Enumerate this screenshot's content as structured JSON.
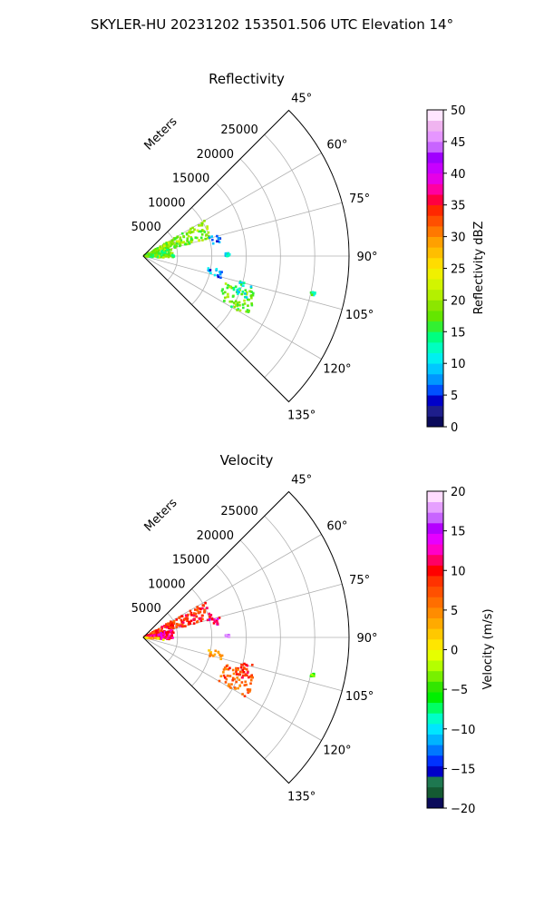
{
  "figure": {
    "suptitle": "SKYLER-HU  20231202  153501.506 UTC Elevation 14°"
  },
  "chart_data": [
    {
      "type": "polar-sector",
      "title": "Reflectivity",
      "radial_label": "Meters",
      "radial_ticks": [
        "5000",
        "10000",
        "15000",
        "20000",
        "25000"
      ],
      "radial_range": [
        0,
        30000
      ],
      "azimuth_range_deg": [
        45,
        135
      ],
      "azimuth_ticks": [
        "45°",
        "60°",
        "75°",
        "90°",
        "105°",
        "120°",
        "135°"
      ],
      "grid": true,
      "colorbar": {
        "label": "Reflectivity dBZ",
        "range": [
          0,
          50
        ],
        "ticks": [
          "0",
          "5",
          "10",
          "15",
          "20",
          "25",
          "30",
          "35",
          "40",
          "45",
          "50"
        ],
        "colors": [
          "#0a0a5a",
          "#1e1e8c",
          "#0000c8",
          "#0050ff",
          "#0096ff",
          "#00c8ff",
          "#00f0f0",
          "#00ffc0",
          "#00ff80",
          "#32f032",
          "#64e600",
          "#8ce600",
          "#b4f000",
          "#d2f500",
          "#f0f000",
          "#ffdc00",
          "#ffbe00",
          "#ffa000",
          "#ff7800",
          "#ff5000",
          "#ff2800",
          "#ff0040",
          "#ff00a0",
          "#e600e6",
          "#c800ff",
          "#a000ff",
          "#c864ff",
          "#e696ff",
          "#f0b4f0",
          "#ffe6ff"
        ]
      },
      "echo_clusters": [
        {
          "az": [
            60,
            75
          ],
          "r": [
            200,
            10500
          ],
          "value": 19
        },
        {
          "az": [
            75,
            95
          ],
          "r": [
            200,
            4500
          ],
          "value": 17
        },
        {
          "az": [
            74,
            80
          ],
          "r": [
            10000,
            11500
          ],
          "value": 7
        },
        {
          "az": [
            88,
            90
          ],
          "r": [
            12000,
            12600
          ],
          "value": 11
        },
        {
          "az": [
            100,
            106
          ],
          "r": [
            9500,
            11800
          ],
          "value": 8
        },
        {
          "az": [
            108,
            120
          ],
          "r": [
            12500,
            17500
          ],
          "value": 18
        },
        {
          "az": [
            104,
            112
          ],
          "r": [
            14500,
            16500
          ],
          "value": 12
        },
        {
          "az": [
            102,
            103
          ],
          "r": [
            25000,
            25600
          ],
          "value": 14
        }
      ]
    },
    {
      "type": "polar-sector",
      "title": "Velocity",
      "radial_label": "Meters",
      "radial_ticks": [
        "5000",
        "10000",
        "15000",
        "20000",
        "25000"
      ],
      "radial_range": [
        0,
        30000
      ],
      "azimuth_range_deg": [
        45,
        135
      ],
      "azimuth_ticks": [
        "45°",
        "60°",
        "75°",
        "90°",
        "105°",
        "120°",
        "135°"
      ],
      "grid": true,
      "colorbar": {
        "label": "Velocity (m/s)",
        "range": [
          -20,
          20
        ],
        "ticks": [
          "−20",
          "−15",
          "−10",
          "−5",
          "0",
          "5",
          "10",
          "15",
          "20"
        ],
        "colors": [
          "#0a0a5a",
          "#145a32",
          "#1e7850",
          "#0000c8",
          "#0032ff",
          "#0078ff",
          "#00b4ff",
          "#00e6ff",
          "#00ffc8",
          "#00ff64",
          "#00f000",
          "#32e600",
          "#78f000",
          "#b4ff00",
          "#e6ff00",
          "#ffe600",
          "#ffc800",
          "#ffaa00",
          "#ff8c00",
          "#ff6e00",
          "#ff5000",
          "#ff3200",
          "#ff0000",
          "#ff0064",
          "#ff00c8",
          "#e600ff",
          "#b400ff",
          "#c864ff",
          "#e6a0ff",
          "#ffdcff"
        ]
      },
      "echo_clusters": [
        {
          "az": [
            60,
            75
          ],
          "r": [
            200,
            10500
          ],
          "value": 9
        },
        {
          "az": [
            75,
            95
          ],
          "r": [
            200,
            4500
          ],
          "value": 12
        },
        {
          "az": [
            92,
            98
          ],
          "r": [
            200,
            3000
          ],
          "value": 2
        },
        {
          "az": [
            74,
            80
          ],
          "r": [
            10000,
            11500
          ],
          "value": 13
        },
        {
          "az": [
            88,
            90
          ],
          "r": [
            12000,
            12600
          ],
          "value": 16
        },
        {
          "az": [
            100,
            106
          ],
          "r": [
            9500,
            11800
          ],
          "value": 4
        },
        {
          "az": [
            108,
            120
          ],
          "r": [
            12500,
            17500
          ],
          "value": 7
        },
        {
          "az": [
            104,
            112
          ],
          "r": [
            14500,
            16500
          ],
          "value": 10
        },
        {
          "az": [
            102,
            103
          ],
          "r": [
            25000,
            25600
          ],
          "value": -4
        }
      ]
    }
  ]
}
